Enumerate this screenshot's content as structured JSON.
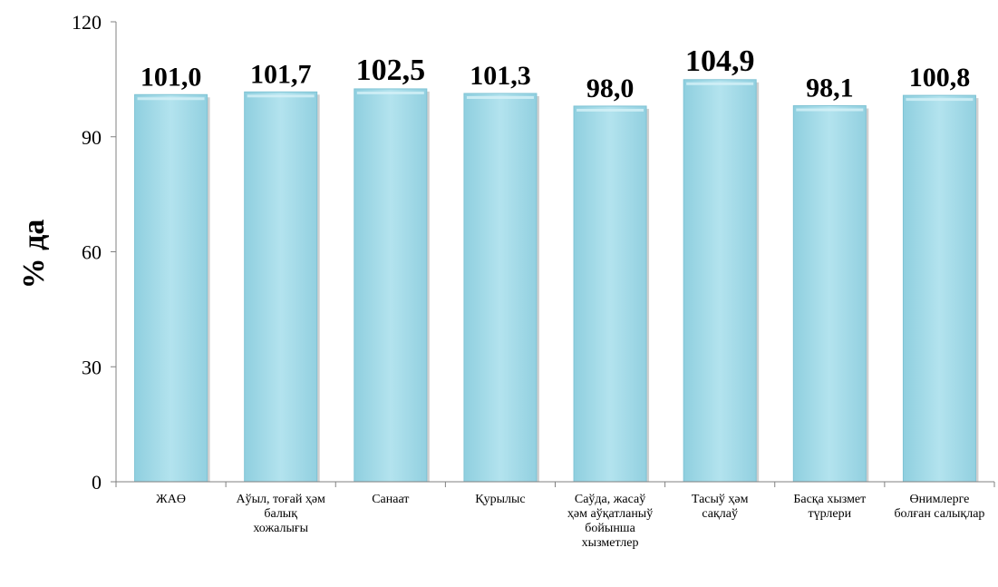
{
  "chart_data": {
    "type": "bar",
    "categories": [
      "ЖАӨ",
      "Аўыл, тоғай ҳәм балық хожалығы",
      "Санаат",
      "Қурылыс",
      "Саўда, жасаў ҳәм аўқатланыў бойынша хызметлер",
      "Тасыў ҳәм сақлаў",
      "Басқа хызмет түрлери",
      "Өнимлерге болған салықлар"
    ],
    "values": [
      101.0,
      101.7,
      102.5,
      101.3,
      98.0,
      104.9,
      98.1,
      100.8
    ],
    "value_labels": [
      "101,0",
      "101,7",
      "102,5",
      "101,3",
      "98,0",
      "104,9",
      "98,1",
      "100,8"
    ],
    "ylabel": "% да",
    "ylim": [
      0,
      120
    ],
    "yticks": [
      "0",
      "30",
      "60",
      "90",
      "120"
    ],
    "grid": false,
    "bar_color": "#a7dde9"
  }
}
